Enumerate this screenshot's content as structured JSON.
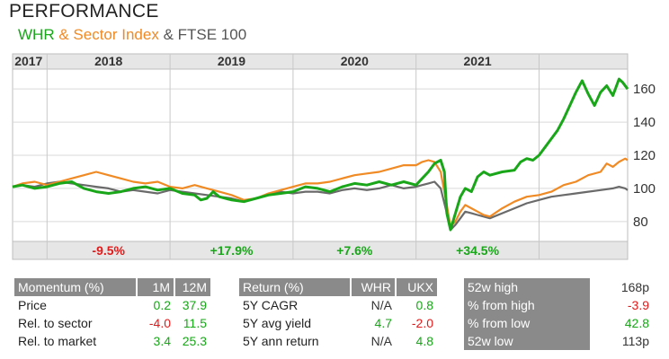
{
  "header": {
    "title": "PERFORMANCE",
    "legend_whr": "WHR",
    "legend_sector": " & Sector Index",
    "legend_ftse": " & FTSE 100"
  },
  "colors": {
    "whr": "#19a619",
    "sector": "#f08a24",
    "ftse": "#6a6a6a",
    "positive": "#19a619",
    "negative": "#e01b1b",
    "header_bg": "#8a8a8a",
    "band_bg": "#e6e6e6"
  },
  "chart_data": {
    "type": "line",
    "x_unit": "year",
    "xlim": [
      2016.72,
      2021.72
    ],
    "ylim": [
      68,
      172
    ],
    "y_ticks": [
      80,
      100,
      120,
      140,
      160
    ],
    "grid": true,
    "y_axis_position": "right",
    "year_labels": [
      {
        "label": "2017",
        "x": 2016.85
      },
      {
        "label": "2018",
        "x": 2017.5
      },
      {
        "label": "2019",
        "x": 2018.5
      },
      {
        "label": "2020",
        "x": 2019.5
      },
      {
        "label": "2021",
        "x": 2020.5
      }
    ],
    "year_boundaries": [
      2017.0,
      2018.0,
      2019.0,
      2020.0,
      2021.0
    ],
    "annual_returns": [
      {
        "label": "-9.5%",
        "x": 2017.5,
        "sign": "negative"
      },
      {
        "label": "+17.9%",
        "x": 2018.5,
        "sign": "positive"
      },
      {
        "label": "+7.6%",
        "x": 2019.5,
        "sign": "positive"
      },
      {
        "label": "+34.5%",
        "x": 2020.5,
        "sign": "positive"
      }
    ],
    "series": [
      {
        "name": "WHR",
        "color": "#19a619",
        "points": [
          [
            2016.72,
            101
          ],
          [
            2016.8,
            102
          ],
          [
            2016.9,
            100
          ],
          [
            2017.0,
            101
          ],
          [
            2017.1,
            103
          ],
          [
            2017.2,
            104
          ],
          [
            2017.3,
            100
          ],
          [
            2017.4,
            98
          ],
          [
            2017.5,
            97
          ],
          [
            2017.6,
            98
          ],
          [
            2017.7,
            100
          ],
          [
            2017.8,
            101
          ],
          [
            2017.9,
            99
          ],
          [
            2018.0,
            100
          ],
          [
            2018.1,
            97
          ],
          [
            2018.2,
            96
          ],
          [
            2018.25,
            93
          ],
          [
            2018.3,
            94
          ],
          [
            2018.35,
            98
          ],
          [
            2018.4,
            95
          ],
          [
            2018.5,
            93
          ],
          [
            2018.6,
            92
          ],
          [
            2018.7,
            94
          ],
          [
            2018.8,
            96
          ],
          [
            2018.9,
            97
          ],
          [
            2019.0,
            98
          ],
          [
            2019.1,
            101
          ],
          [
            2019.2,
            100
          ],
          [
            2019.3,
            98
          ],
          [
            2019.4,
            101
          ],
          [
            2019.5,
            103
          ],
          [
            2019.6,
            102
          ],
          [
            2019.7,
            104
          ],
          [
            2019.8,
            102
          ],
          [
            2019.9,
            104
          ],
          [
            2020.0,
            102
          ],
          [
            2020.05,
            106
          ],
          [
            2020.1,
            110
          ],
          [
            2020.15,
            115
          ],
          [
            2020.2,
            117
          ],
          [
            2020.23,
            110
          ],
          [
            2020.25,
            85
          ],
          [
            2020.28,
            75
          ],
          [
            2020.32,
            85
          ],
          [
            2020.36,
            95
          ],
          [
            2020.4,
            100
          ],
          [
            2020.45,
            98
          ],
          [
            2020.5,
            107
          ],
          [
            2020.55,
            110
          ],
          [
            2020.6,
            108
          ],
          [
            2020.7,
            110
          ],
          [
            2020.8,
            111
          ],
          [
            2020.85,
            116
          ],
          [
            2020.9,
            118
          ],
          [
            2020.95,
            117
          ],
          [
            2021.0,
            120
          ],
          [
            2021.05,
            125
          ],
          [
            2021.1,
            130
          ],
          [
            2021.15,
            135
          ],
          [
            2021.2,
            142
          ],
          [
            2021.25,
            150
          ],
          [
            2021.3,
            158
          ],
          [
            2021.35,
            165
          ],
          [
            2021.4,
            157
          ],
          [
            2021.45,
            150
          ],
          [
            2021.5,
            158
          ],
          [
            2021.55,
            162
          ],
          [
            2021.6,
            156
          ],
          [
            2021.65,
            166
          ],
          [
            2021.68,
            164
          ],
          [
            2021.72,
            160
          ]
        ]
      },
      {
        "name": "Sector Index",
        "color": "#f08a24",
        "points": [
          [
            2016.72,
            101
          ],
          [
            2016.8,
            103
          ],
          [
            2016.9,
            104
          ],
          [
            2017.0,
            102
          ],
          [
            2017.1,
            104
          ],
          [
            2017.2,
            106
          ],
          [
            2017.3,
            108
          ],
          [
            2017.4,
            110
          ],
          [
            2017.5,
            108
          ],
          [
            2017.6,
            106
          ],
          [
            2017.7,
            104
          ],
          [
            2017.8,
            103
          ],
          [
            2017.9,
            104
          ],
          [
            2018.0,
            101
          ],
          [
            2018.1,
            100
          ],
          [
            2018.2,
            102
          ],
          [
            2018.3,
            100
          ],
          [
            2018.4,
            98
          ],
          [
            2018.5,
            96
          ],
          [
            2018.6,
            93
          ],
          [
            2018.7,
            94
          ],
          [
            2018.8,
            97
          ],
          [
            2018.9,
            99
          ],
          [
            2019.0,
            101
          ],
          [
            2019.1,
            103
          ],
          [
            2019.2,
            103
          ],
          [
            2019.3,
            104
          ],
          [
            2019.4,
            106
          ],
          [
            2019.5,
            108
          ],
          [
            2019.6,
            109
          ],
          [
            2019.7,
            110
          ],
          [
            2019.8,
            112
          ],
          [
            2019.9,
            114
          ],
          [
            2020.0,
            114
          ],
          [
            2020.05,
            116
          ],
          [
            2020.1,
            117
          ],
          [
            2020.15,
            116
          ],
          [
            2020.2,
            110
          ],
          [
            2020.25,
            90
          ],
          [
            2020.28,
            77
          ],
          [
            2020.32,
            80
          ],
          [
            2020.36,
            86
          ],
          [
            2020.4,
            90
          ],
          [
            2020.45,
            88
          ],
          [
            2020.5,
            86
          ],
          [
            2020.55,
            84
          ],
          [
            2020.6,
            83
          ],
          [
            2020.7,
            88
          ],
          [
            2020.8,
            92
          ],
          [
            2020.9,
            95
          ],
          [
            2021.0,
            96
          ],
          [
            2021.1,
            98
          ],
          [
            2021.2,
            102
          ],
          [
            2021.3,
            104
          ],
          [
            2021.4,
            108
          ],
          [
            2021.5,
            110
          ],
          [
            2021.55,
            115
          ],
          [
            2021.6,
            113
          ],
          [
            2021.65,
            116
          ],
          [
            2021.7,
            118
          ],
          [
            2021.72,
            117
          ]
        ]
      },
      {
        "name": "FTSE 100",
        "color": "#6a6a6a",
        "points": [
          [
            2016.72,
            101
          ],
          [
            2016.8,
            102
          ],
          [
            2016.9,
            101
          ],
          [
            2017.0,
            103
          ],
          [
            2017.1,
            104
          ],
          [
            2017.2,
            103
          ],
          [
            2017.3,
            102
          ],
          [
            2017.4,
            101
          ],
          [
            2017.5,
            100
          ],
          [
            2017.6,
            98
          ],
          [
            2017.7,
            99
          ],
          [
            2017.8,
            98
          ],
          [
            2017.9,
            97
          ],
          [
            2018.0,
            99
          ],
          [
            2018.1,
            98
          ],
          [
            2018.2,
            97
          ],
          [
            2018.3,
            96
          ],
          [
            2018.4,
            95
          ],
          [
            2018.5,
            94
          ],
          [
            2018.6,
            92
          ],
          [
            2018.7,
            94
          ],
          [
            2018.8,
            96
          ],
          [
            2018.9,
            98
          ],
          [
            2019.0,
            97
          ],
          [
            2019.1,
            98
          ],
          [
            2019.2,
            98
          ],
          [
            2019.3,
            97
          ],
          [
            2019.4,
            99
          ],
          [
            2019.5,
            100
          ],
          [
            2019.6,
            99
          ],
          [
            2019.7,
            100
          ],
          [
            2019.8,
            102
          ],
          [
            2019.9,
            100
          ],
          [
            2020.0,
            101
          ],
          [
            2020.05,
            102
          ],
          [
            2020.1,
            103
          ],
          [
            2020.15,
            104
          ],
          [
            2020.2,
            100
          ],
          [
            2020.25,
            85
          ],
          [
            2020.28,
            75
          ],
          [
            2020.32,
            78
          ],
          [
            2020.36,
            82
          ],
          [
            2020.4,
            86
          ],
          [
            2020.45,
            85
          ],
          [
            2020.5,
            84
          ],
          [
            2020.55,
            83
          ],
          [
            2020.6,
            82
          ],
          [
            2020.7,
            85
          ],
          [
            2020.8,
            88
          ],
          [
            2020.9,
            91
          ],
          [
            2021.0,
            93
          ],
          [
            2021.1,
            95
          ],
          [
            2021.2,
            96
          ],
          [
            2021.3,
            97
          ],
          [
            2021.4,
            98
          ],
          [
            2021.5,
            99
          ],
          [
            2021.6,
            100
          ],
          [
            2021.65,
            101
          ],
          [
            2021.7,
            100
          ],
          [
            2021.72,
            99
          ]
        ]
      }
    ]
  },
  "momentum": {
    "headers": [
      "Momentum (%)",
      "1M",
      "12M"
    ],
    "rows": [
      {
        "label": "Price",
        "m1": "0.2",
        "m1_sign": "pos",
        "m12": "37.9",
        "m12_sign": "pos"
      },
      {
        "label": "Rel. to sector",
        "m1": "-4.0",
        "m1_sign": "neg",
        "m12": "11.5",
        "m12_sign": "pos"
      },
      {
        "label": "Rel. to market",
        "m1": "3.4",
        "m1_sign": "pos",
        "m12": "25.3",
        "m12_sign": "pos"
      }
    ]
  },
  "returns": {
    "headers": [
      "Return (%)",
      "WHR",
      "UKX"
    ],
    "rows": [
      {
        "label": "5Y CAGR",
        "whr": "N/A",
        "whr_sign": "neu",
        "ukx": "0.8",
        "ukx_sign": "pos"
      },
      {
        "label": "5Y avg yield",
        "whr": "4.7",
        "whr_sign": "pos",
        "ukx": "-2.0",
        "ukx_sign": "neg"
      },
      {
        "label": "5Y ann return",
        "whr": "N/A",
        "whr_sign": "neu",
        "ukx": "4.8",
        "ukx_sign": "pos"
      }
    ]
  },
  "week52": {
    "rows": [
      {
        "label": "52w high",
        "value": "168p",
        "sign": "neu"
      },
      {
        "label": "% from high",
        "value": "-3.9",
        "sign": "neg"
      },
      {
        "label": "% from low",
        "value": "42.8",
        "sign": "pos"
      },
      {
        "label": "52w low",
        "value": "113p",
        "sign": "neu"
      }
    ]
  }
}
